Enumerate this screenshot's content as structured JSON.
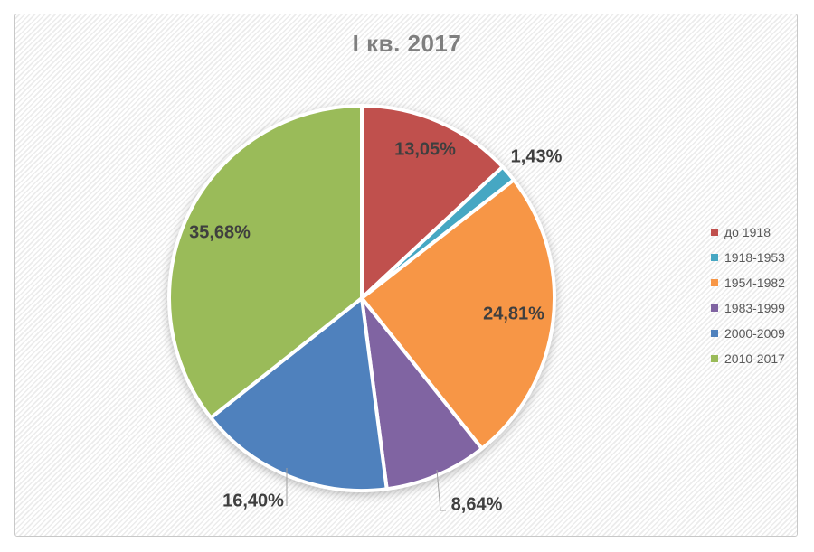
{
  "chart_data": {
    "type": "pie",
    "title": "I кв. 2017",
    "categories": [
      "до 1918",
      "1918-1953",
      "1954-1982",
      "1983-1999",
      "2000-2009",
      "2010-2017"
    ],
    "values": [
      13.05,
      1.43,
      24.81,
      8.64,
      16.4,
      35.68
    ],
    "labels": [
      "13,05%",
      "1,43%",
      "24,81%",
      "8,64%",
      "16,40%",
      "35,68%"
    ],
    "colors": [
      "#C0504D",
      "#46A7C3",
      "#F79646",
      "#8064A2",
      "#4F81BD",
      "#9ABB59"
    ],
    "total": 100,
    "start_angle_deg": 0,
    "direction": "clockwise",
    "legend_position": "right",
    "value_format": "percent with comma decimal separator",
    "style": {
      "title_color": "#7F7F7F",
      "data_label_color": "#3F3F3F",
      "legend_text_color": "#595959",
      "slice_border_color": "#FFFFFF",
      "frame_border_color": "#C8C8C8",
      "background_pattern": "light diagonal hatch"
    }
  }
}
